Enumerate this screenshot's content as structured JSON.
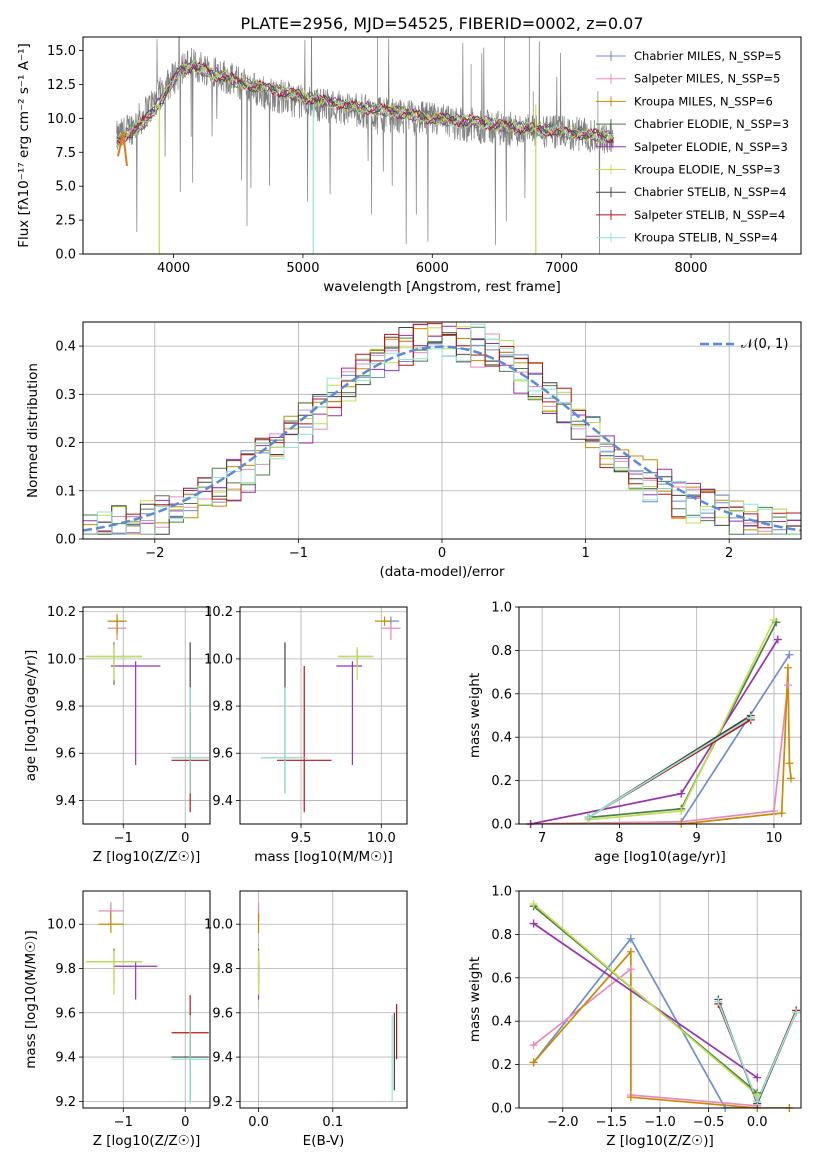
{
  "title": "PLATE=2956, MJD=54525, FIBERID=0002, z=0.07",
  "colors": {
    "grey": "#808080",
    "c": [
      "#6e8ed0",
      "#e68ac2",
      "#cc8a00",
      "#4f7d4a",
      "#9a32b4",
      "#bfe04f",
      "#444444",
      "#b81414",
      "#90e6d6"
    ]
  },
  "chart_data": [
    {
      "type": "line",
      "panel": "spectrum",
      "title": "PLATE=2956, MJD=54525, FIBERID=0002, z=0.07",
      "xlabel": "wavelength [Angstrom, rest frame]",
      "ylabel": "Flux [fλ10⁻¹⁷ erg cm⁻² s⁻¹ A⁻¹]",
      "xlim": [
        3300,
        8850
      ],
      "ylim": [
        0,
        16
      ],
      "xticks": [
        4000,
        5000,
        6000,
        7000,
        8000
      ],
      "xtick_labels": [
        "4000",
        "5000",
        "6000",
        "7000",
        "8000"
      ],
      "yticks": [
        0,
        2.5,
        5,
        7.5,
        10,
        12.5,
        15
      ],
      "ytick_labels": [
        "0.0",
        "2.5",
        "5.0",
        "7.5",
        "10.0",
        "12.5",
        "15.0"
      ],
      "grid": false,
      "legend_position": "top-right",
      "legend": [
        "Chabrier MILES, N_SSP=5",
        "Salpeter MILES, N_SSP=5",
        "Kroupa MILES, N_SSP=6",
        "Chabrier ELODIE, N_SSP=3",
        "Salpeter ELODIE, N_SSP=3",
        "Kroupa ELODIE, N_SSP=3",
        "Chabrier STELIB, N_SSP=4",
        "Salpeter STELIB, N_SSP=4",
        "Kroupa STELIB, N_SSP=4"
      ],
      "data_series": {
        "name": "data",
        "x": [
          3560,
          3700,
          3850,
          4000,
          4100,
          4300,
          4500,
          4700,
          5000,
          5300,
          5600,
          6000,
          6300,
          6600,
          7000,
          7300,
          7400
        ],
        "y": [
          8.5,
          9.5,
          11.2,
          13.0,
          14.0,
          13.6,
          12.6,
          11.9,
          11.2,
          10.8,
          10.3,
          9.9,
          9.5,
          9.2,
          8.9,
          8.7,
          8.6
        ]
      },
      "model_series": {
        "x": [
          3560,
          3650,
          3750,
          3850,
          3950,
          4050,
          4150,
          4300,
          4450,
          4600,
          4750,
          4900,
          5050,
          5200,
          5400,
          5600,
          5800,
          6000,
          6200,
          6400,
          6600,
          6800,
          7000,
          7200,
          7400
        ],
        "y": [
          8.2,
          8.9,
          9.5,
          10.6,
          12.0,
          13.6,
          13.9,
          13.3,
          12.9,
          12.4,
          12.2,
          11.8,
          11.5,
          11.2,
          10.9,
          10.6,
          10.4,
          10.0,
          9.9,
          9.7,
          9.4,
          9.2,
          9.0,
          8.8,
          8.6
        ]
      }
    },
    {
      "type": "histogram",
      "panel": "residuals",
      "xlabel": "(data-model)/error",
      "ylabel": "Normed distribution",
      "xlim": [
        -2.5,
        2.5
      ],
      "ylim": [
        0,
        0.45
      ],
      "xticks": [
        -2,
        -1,
        0,
        1,
        2
      ],
      "xtick_labels": [
        "−2",
        "−1",
        "0",
        "1",
        "2"
      ],
      "yticks": [
        0,
        0.1,
        0.2,
        0.3,
        0.4
      ],
      "ytick_labels": [
        "0.0",
        "0.1",
        "0.2",
        "0.3",
        "0.4"
      ],
      "grid": true,
      "legend_position": "top-right",
      "legend": [
        "𝒩(0, 1)"
      ],
      "bin_width": 0.1,
      "bin_start": -2.5,
      "reference_curve": "standard normal, dashed"
    },
    {
      "type": "errorbar",
      "panel": "age-vs-Z",
      "xlabel": "Z [log10(Z/Z☉)]",
      "ylabel": "age  [log10(age/yr)]",
      "xlim": [
        -1.65,
        0.4
      ],
      "ylim": [
        9.3,
        10.22
      ],
      "xticks": [
        -1,
        0
      ],
      "xtick_labels": [
        "−1",
        "0"
      ],
      "yticks": [
        9.4,
        9.6,
        9.8,
        10.0,
        10.2
      ],
      "ytick_labels": [
        "9.4",
        "9.6",
        "9.8",
        "10.0",
        "10.2"
      ],
      "grid": true,
      "points": [
        {
          "s": 0,
          "x": -1.1,
          "y": 10.16,
          "xerr": [
            0.15,
            0.15
          ],
          "yerr": [
            0.05,
            0.02
          ]
        },
        {
          "s": 1,
          "x": -1.1,
          "y": 10.13,
          "xerr": [
            0.15,
            0.15
          ],
          "yerr": [
            0.05,
            0.02
          ]
        },
        {
          "s": 2,
          "x": -1.1,
          "y": 10.16,
          "xerr": [
            0.15,
            0.15
          ],
          "yerr": [
            0.06,
            0.03
          ]
        },
        {
          "s": 3,
          "x": -1.15,
          "y": 10.01,
          "xerr": [
            0.45,
            0.45
          ],
          "yerr": [
            0.12,
            0.06
          ]
        },
        {
          "s": 4,
          "x": -0.8,
          "y": 9.97,
          "xerr": [
            0.4,
            0.4
          ],
          "yerr": [
            0.42,
            0.02
          ]
        },
        {
          "s": 5,
          "x": -1.15,
          "y": 10.01,
          "xerr": [
            0.45,
            0.45
          ],
          "yerr": [
            0.1,
            0.05
          ]
        },
        {
          "s": 6,
          "x": 0.08,
          "y": 9.58,
          "xerr": [
            0.3,
            0.3
          ],
          "yerr": [
            0.15,
            0.49
          ]
        },
        {
          "s": 7,
          "x": 0.08,
          "y": 9.57,
          "xerr": [
            0.3,
            0.3
          ],
          "yerr": [
            0.22,
            0.2
          ]
        },
        {
          "s": 8,
          "x": 0.08,
          "y": 9.58,
          "xerr": [
            0.3,
            0.3
          ],
          "yerr": [
            0.15,
            0.3
          ]
        }
      ]
    },
    {
      "type": "errorbar",
      "panel": "age-vs-mass",
      "xlabel": "mass [log10(M/M☉)]",
      "ylabel": "",
      "xlim": [
        9.12,
        10.16
      ],
      "ylim": [
        9.3,
        10.22
      ],
      "xticks": [
        9.5,
        10.0
      ],
      "xtick_labels": [
        "9.5",
        "10.0"
      ],
      "yticks": [
        9.4,
        9.6,
        9.8,
        10.0,
        10.2
      ],
      "ytick_labels": [
        "9.4",
        "9.6",
        "9.8",
        "10.0",
        "10.2"
      ],
      "grid": true,
      "points": [
        {
          "s": 0,
          "x": 10.06,
          "y": 10.16,
          "xerr": [
            0.05,
            0.05
          ],
          "yerr": [
            0.04,
            0.02
          ]
        },
        {
          "s": 1,
          "x": 10.06,
          "y": 10.13,
          "xerr": [
            0.06,
            0.06
          ],
          "yerr": [
            0.05,
            0.02
          ]
        },
        {
          "s": 2,
          "x": 10.02,
          "y": 10.16,
          "xerr": [
            0.06,
            0.04
          ],
          "yerr": [
            0.02,
            0.02
          ]
        },
        {
          "s": 3,
          "x": 9.85,
          "y": 10.01,
          "xerr": [
            0.12,
            0.1
          ],
          "yerr": [
            0.04,
            0.03
          ]
        },
        {
          "s": 4,
          "x": 9.82,
          "y": 9.97,
          "xerr": [
            0.1,
            0.06
          ],
          "yerr": [
            0.42,
            0.02
          ]
        },
        {
          "s": 5,
          "x": 9.85,
          "y": 10.01,
          "xerr": [
            0.12,
            0.1
          ],
          "yerr": [
            0.1,
            0.04
          ]
        },
        {
          "s": 6,
          "x": 9.4,
          "y": 9.58,
          "xerr": [
            0.15,
            0.14
          ],
          "yerr": [
            0.15,
            0.49
          ]
        },
        {
          "s": 7,
          "x": 9.52,
          "y": 9.57,
          "xerr": [
            0.17,
            0.17
          ],
          "yerr": [
            0.22,
            0.4
          ]
        },
        {
          "s": 8,
          "x": 9.4,
          "y": 9.58,
          "xerr": [
            0.15,
            0.14
          ],
          "yerr": [
            0.15,
            0.3
          ]
        }
      ]
    },
    {
      "type": "line",
      "panel": "mass-weight-vs-age",
      "xlabel": "age  [log10(age/yr)]",
      "ylabel": "mass weight",
      "xlim": [
        6.7,
        10.35
      ],
      "ylim": [
        0,
        1
      ],
      "xticks": [
        7,
        8,
        9,
        10
      ],
      "xtick_labels": [
        "7",
        "8",
        "9",
        "10"
      ],
      "yticks": [
        0,
        0.2,
        0.4,
        0.6,
        0.8,
        1.0
      ],
      "ytick_labels": [
        "0.0",
        "0.2",
        "0.4",
        "0.6",
        "0.8",
        "1.0"
      ],
      "grid": true,
      "series": [
        {
          "s": 0,
          "x": [
            6.85,
            8.8,
            10.2
          ],
          "y": [
            0.0,
            0.01,
            0.78
          ]
        },
        {
          "s": 1,
          "x": [
            6.85,
            8.8,
            10.0,
            10.18
          ],
          "y": [
            0.0,
            0.01,
            0.06,
            0.64
          ]
        },
        {
          "s": 2,
          "x": [
            6.85,
            8.8,
            10.1,
            10.18,
            10.2,
            10.22
          ],
          "y": [
            0.0,
            0.0,
            0.05,
            0.72,
            0.28,
            0.21
          ]
        },
        {
          "s": 3,
          "x": [
            7.6,
            8.8,
            10.03
          ],
          "y": [
            0.03,
            0.07,
            0.93
          ]
        },
        {
          "s": 4,
          "x": [
            6.85,
            8.8,
            10.05
          ],
          "y": [
            0.0,
            0.14,
            0.85
          ]
        },
        {
          "s": 5,
          "x": [
            7.6,
            8.8,
            10.0
          ],
          "y": [
            0.02,
            0.06,
            0.94
          ]
        },
        {
          "s": 6,
          "x": [
            7.6,
            9.7
          ],
          "y": [
            0.03,
            0.5
          ]
        },
        {
          "s": 7,
          "x": [
            7.6,
            9.7
          ],
          "y": [
            0.03,
            0.48
          ]
        },
        {
          "s": 8,
          "x": [
            7.6,
            9.7
          ],
          "y": [
            0.03,
            0.49
          ]
        }
      ]
    },
    {
      "type": "errorbar",
      "panel": "mass-vs-Z",
      "xlabel": "Z [log10(Z/Z☉)]",
      "ylabel": "mass [log10(M/M☉)]",
      "xlim": [
        -1.65,
        0.4
      ],
      "ylim": [
        9.17,
        10.15
      ],
      "xticks": [
        -1,
        0
      ],
      "xtick_labels": [
        "−1",
        "0"
      ],
      "yticks": [
        9.2,
        9.4,
        9.6,
        9.8,
        10.0
      ],
      "ytick_labels": [
        "9.2",
        "9.4",
        "9.6",
        "9.8",
        "10.0"
      ],
      "grid": true,
      "points": [
        {
          "s": 0,
          "x": -1.2,
          "y": 10.06,
          "xerr": [
            0.2,
            0.2
          ],
          "yerr": [
            0.06,
            0.03
          ]
        },
        {
          "s": 1,
          "x": -1.2,
          "y": 10.06,
          "xerr": [
            0.2,
            0.2
          ],
          "yerr": [
            0.06,
            0.04
          ]
        },
        {
          "s": 2,
          "x": -1.2,
          "y": 10.0,
          "xerr": [
            0.2,
            0.2
          ],
          "yerr": [
            0.04,
            0.06
          ]
        },
        {
          "s": 3,
          "x": -1.15,
          "y": 9.83,
          "xerr": [
            0.45,
            0.45
          ],
          "yerr": [
            0.1,
            0.06
          ]
        },
        {
          "s": 4,
          "x": -0.8,
          "y": 9.81,
          "xerr": [
            0.35,
            0.35
          ],
          "yerr": [
            0.15,
            0.02
          ]
        },
        {
          "s": 5,
          "x": -1.15,
          "y": 9.83,
          "xerr": [
            0.45,
            0.45
          ],
          "yerr": [
            0.15,
            0.05
          ]
        },
        {
          "s": 6,
          "x": 0.08,
          "y": 9.4,
          "xerr": [
            0.3,
            0.3
          ],
          "yerr": [
            0.2,
            0.2
          ]
        },
        {
          "s": 7,
          "x": 0.08,
          "y": 9.51,
          "xerr": [
            0.3,
            0.3
          ],
          "yerr": [
            0.1,
            0.17
          ]
        },
        {
          "s": 8,
          "x": 0.08,
          "y": 9.39,
          "xerr": [
            0.3,
            0.3
          ],
          "yerr": [
            0.2,
            0.2
          ]
        }
      ]
    },
    {
      "type": "errorbar",
      "panel": "mass-vs-EBV",
      "xlabel": "E(B-V)",
      "ylabel": "",
      "xlim": [
        -0.025,
        0.2
      ],
      "ylim": [
        9.17,
        10.15
      ],
      "xticks": [
        0.0,
        0.1
      ],
      "xtick_labels": [
        "0.0",
        "0.1"
      ],
      "yticks": [
        9.2,
        9.4,
        9.6,
        9.8,
        10.0
      ],
      "ytick_labels": [
        "9.2",
        "9.4",
        "9.6",
        "9.8",
        "10.0"
      ],
      "grid": true,
      "points": [
        {
          "s": 0,
          "x": 0.0,
          "y": 10.06,
          "xerr": [
            0,
            0
          ],
          "yerr": [
            0.05,
            0.02
          ]
        },
        {
          "s": 1,
          "x": 0.0,
          "y": 10.06,
          "xerr": [
            0,
            0
          ],
          "yerr": [
            0.05,
            0.04
          ]
        },
        {
          "s": 2,
          "x": 0.0,
          "y": 10.0,
          "xerr": [
            0,
            0
          ],
          "yerr": [
            0.04,
            0.05
          ]
        },
        {
          "s": 3,
          "x": 0.0,
          "y": 9.83,
          "xerr": [
            0,
            0
          ],
          "yerr": [
            0.1,
            0.06
          ]
        },
        {
          "s": 4,
          "x": 0.0,
          "y": 9.81,
          "xerr": [
            0,
            0
          ],
          "yerr": [
            0.15,
            0.02
          ]
        },
        {
          "s": 5,
          "x": 0.0,
          "y": 9.83,
          "xerr": [
            0,
            0
          ],
          "yerr": [
            0.15,
            0.05
          ]
        },
        {
          "s": 6,
          "x": 0.183,
          "y": 9.4,
          "xerr": [
            0,
            0
          ],
          "yerr": [
            0.15,
            0.2
          ]
        },
        {
          "s": 7,
          "x": 0.186,
          "y": 9.51,
          "xerr": [
            0,
            0
          ],
          "yerr": [
            0.12,
            0.13
          ]
        },
        {
          "s": 8,
          "x": 0.18,
          "y": 9.39,
          "xerr": [
            0,
            0
          ],
          "yerr": [
            0.19,
            0.2
          ]
        }
      ]
    },
    {
      "type": "line",
      "panel": "mass-weight-vs-Z",
      "xlabel": "Z [log10(Z/Z☉)]",
      "ylabel": "mass weight",
      "xlim": [
        -2.45,
        0.45
      ],
      "ylim": [
        0,
        1
      ],
      "xticks": [
        -2.0,
        -1.5,
        -1.0,
        -0.5,
        0.0
      ],
      "xtick_labels": [
        "−2.0",
        "−1.5",
        "−1.0",
        "−0.5",
        "0.0"
      ],
      "yticks": [
        0,
        0.2,
        0.4,
        0.6,
        0.8,
        1.0
      ],
      "ytick_labels": [
        "0.0",
        "0.2",
        "0.4",
        "0.6",
        "0.8",
        "1.0"
      ],
      "grid": true,
      "series": [
        {
          "s": 0,
          "x": [
            -2.3,
            -1.3,
            -0.33,
            0.0
          ],
          "y": [
            0.21,
            0.78,
            0.0,
            0.0
          ]
        },
        {
          "s": 1,
          "x": [
            -2.3,
            -1.3,
            -1.3,
            0.0
          ],
          "y": [
            0.29,
            0.64,
            0.06,
            0.01
          ]
        },
        {
          "s": 2,
          "x": [
            -2.3,
            -1.3,
            -1.3,
            0.0,
            0.33
          ],
          "y": [
            0.21,
            0.72,
            0.05,
            0.0,
            0.0
          ]
        },
        {
          "s": 3,
          "x": [
            -2.3,
            0.0
          ],
          "y": [
            0.93,
            0.07
          ]
        },
        {
          "s": 4,
          "x": [
            -2.3,
            0.0
          ],
          "y": [
            0.85,
            0.14
          ]
        },
        {
          "s": 5,
          "x": [
            -2.3,
            0.0
          ],
          "y": [
            0.94,
            0.06
          ]
        },
        {
          "s": 6,
          "x": [
            -0.4,
            0.0,
            0.4
          ],
          "y": [
            0.5,
            0.02,
            0.44
          ]
        },
        {
          "s": 7,
          "x": [
            -0.4,
            0.0,
            0.4
          ],
          "y": [
            0.48,
            0.03,
            0.45
          ]
        },
        {
          "s": 8,
          "x": [
            -0.4,
            0.0,
            0.4
          ],
          "y": [
            0.49,
            0.03,
            0.44
          ]
        }
      ]
    }
  ]
}
